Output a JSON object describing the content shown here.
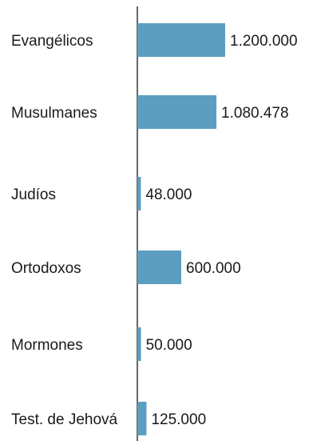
{
  "chart_data": {
    "type": "bar",
    "orientation": "horizontal",
    "categories": [
      "Evangélicos",
      "Musulmanes",
      "Judíos",
      "Ortodoxos",
      "Mormones",
      "Test. de Jehová"
    ],
    "values": [
      1200000,
      1080478,
      48000,
      600000,
      50000,
      125000
    ],
    "value_labels": [
      "1.200.000",
      "1.080.478",
      "48.000",
      "600.000",
      "50.000",
      "125.000"
    ],
    "xlim": [
      0,
      1200000
    ],
    "bar_color": "#5b9ebf",
    "axis_color": "#333333",
    "grid": false,
    "legend": false
  }
}
